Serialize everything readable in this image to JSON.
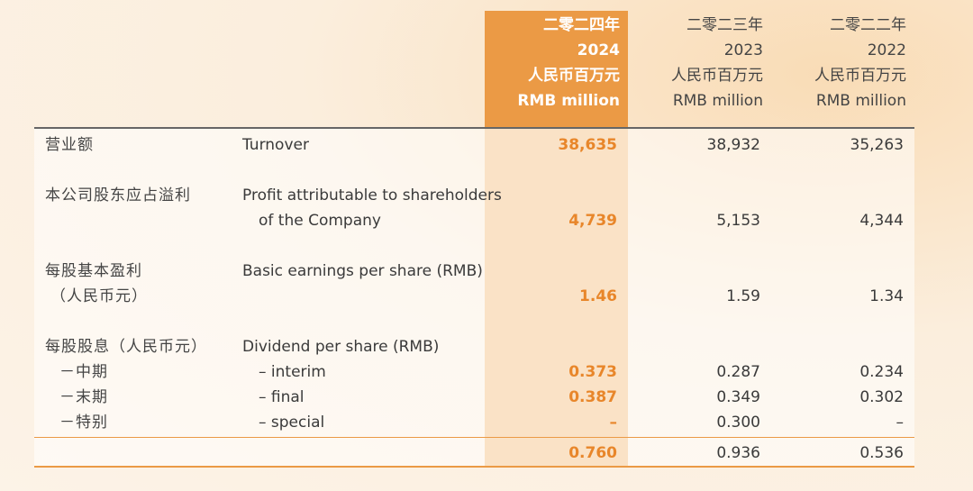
{
  "header": {
    "col1": {
      "zh_year": "二零二四年",
      "year": "2024",
      "unit_zh": "人民币百万元",
      "unit_en": "RMB million"
    },
    "col2": {
      "zh_year": "二零二三年",
      "year": "2023",
      "unit_zh": "人民币百万元",
      "unit_en": "RMB million"
    },
    "col3": {
      "zh_year": "二零二二年",
      "year": "2022",
      "unit_zh": "人民币百万元",
      "unit_en": "RMB million"
    }
  },
  "rows": {
    "turnover": {
      "zh": "营业额",
      "en": "Turnover",
      "v2024": "38,635",
      "v2023": "38,932",
      "v2022": "35,263"
    },
    "profit": {
      "zh": "本公司股东应占溢利",
      "en1": "Profit attributable to shareholders",
      "en2": "of the Company",
      "v2024": "4,739",
      "v2023": "5,153",
      "v2022": "4,344"
    },
    "eps": {
      "zh1": "每股基本盈利",
      "zh2": "（人民币元）",
      "en": "Basic earnings per share (RMB)",
      "v2024": "1.46",
      "v2023": "1.59",
      "v2022": "1.34"
    },
    "dividend": {
      "zh": "每股股息（人民币元）",
      "en": "Dividend per share (RMB)"
    },
    "interim": {
      "zh": "－中期",
      "en": "– interim",
      "v2024": "0.373",
      "v2023": "0.287",
      "v2022": "0.234"
    },
    "final": {
      "zh": "－末期",
      "en": "– final",
      "v2024": "0.387",
      "v2023": "0.349",
      "v2022": "0.302"
    },
    "special": {
      "zh": "－特别",
      "en": "– special",
      "v2024": "–",
      "v2023": "0.300",
      "v2022": "–"
    },
    "total": {
      "v2024": "0.760",
      "v2023": "0.936",
      "v2022": "0.536"
    }
  },
  "colors": {
    "highlight": "#eb9a45",
    "highlight_text": "#e8862a"
  }
}
